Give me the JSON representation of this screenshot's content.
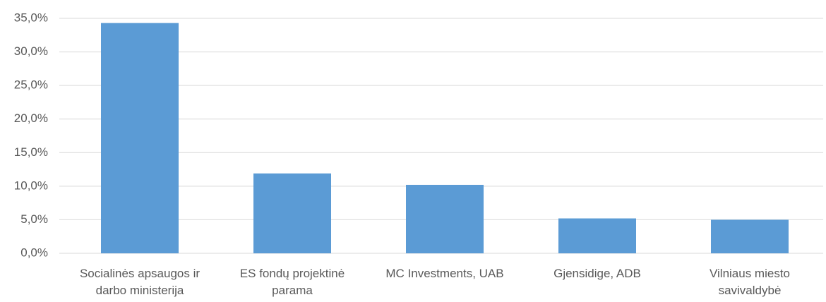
{
  "chart_data": {
    "type": "bar",
    "categories": [
      "Socialinės apsaugos ir darbo ministerija",
      "ES fondų projektinė parama",
      "MC Investments, UAB",
      "Gjensidige, ADB",
      "Vilniaus miesto savivaldybė"
    ],
    "values": [
      34.3,
      11.9,
      10.2,
      5.2,
      5.0
    ],
    "color": "#5b9bd5",
    "ylim": [
      0,
      35
    ],
    "yticks": [
      {
        "value": 0,
        "label": "0,0%"
      },
      {
        "value": 5,
        "label": "5,0%"
      },
      {
        "value": 10,
        "label": "10,0%"
      },
      {
        "value": 15,
        "label": "15,0%"
      },
      {
        "value": 20,
        "label": "20,0%"
      },
      {
        "value": 25,
        "label": "25,0%"
      },
      {
        "value": 30,
        "label": "30,0%"
      },
      {
        "value": 35,
        "label": "35,0%"
      }
    ],
    "grid": true
  }
}
